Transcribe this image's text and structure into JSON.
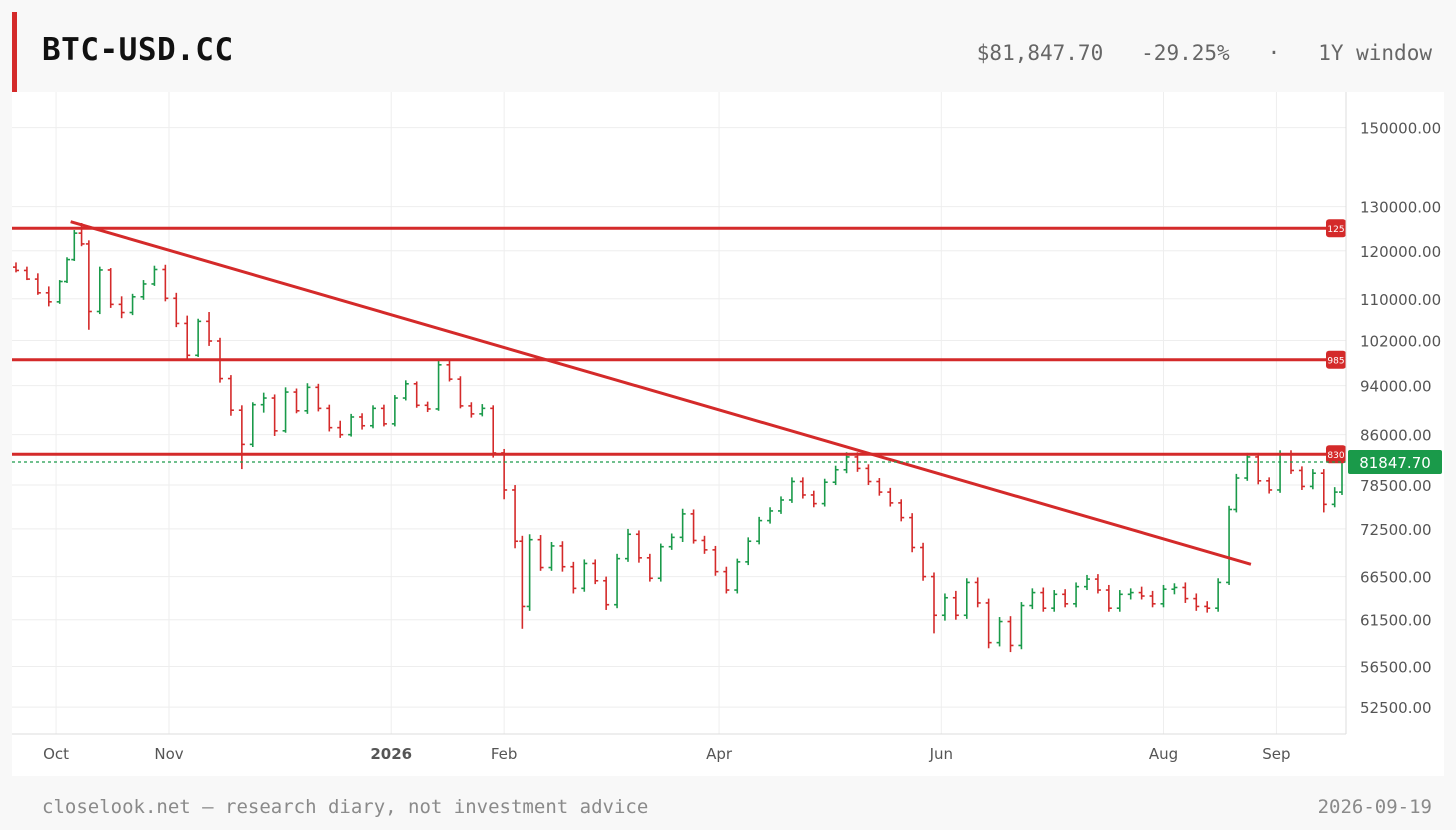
{
  "header": {
    "symbol": "BTC-USD.CC",
    "price": "$81,847.70",
    "change": "-29.25%",
    "separator": "·",
    "window": "1Y window"
  },
  "footer": {
    "note": "closelook.net — research diary, not investment advice",
    "date": "2026-09-19"
  },
  "colors": {
    "up": "#1a9a4a",
    "down": "#d42a2a",
    "level": "#d42a2a",
    "price_tag": "#1a9a4a"
  },
  "chart_data": {
    "type": "ohlc",
    "y_scale": "log",
    "ylim": [
      50000,
      160000
    ],
    "y_ticks": [
      "150000.00",
      "130000.00",
      "120000.00",
      "110000.00",
      "102000.00",
      "94000.00",
      "86000.00",
      "78500.00",
      "72500.00",
      "66500.00",
      "61500.00",
      "56500.00",
      "52500.00"
    ],
    "x_ticks": [
      {
        "label": "Oct",
        "date": "2025-10-01",
        "bold": false
      },
      {
        "label": "Nov",
        "date": "2025-11-01",
        "bold": false
      },
      {
        "label": "2026",
        "date": "2026-01-01",
        "bold": true
      },
      {
        "label": "Feb",
        "date": "2026-02-01",
        "bold": false
      },
      {
        "label": "Apr",
        "date": "2026-04-01",
        "bold": false
      },
      {
        "label": "Jun",
        "date": "2026-06-01",
        "bold": false
      },
      {
        "label": "Aug",
        "date": "2026-08-01",
        "bold": false
      },
      {
        "label": "Sep",
        "date": "2026-09-01",
        "bold": false
      }
    ],
    "x_range": [
      "2025-09-20",
      "2026-09-19"
    ],
    "last_price": 81847.7,
    "last_price_label": "81847.70",
    "horizontal_levels": [
      {
        "value": 125000,
        "label": "125"
      },
      {
        "value": 98500,
        "label": "985"
      },
      {
        "value": 83000,
        "label": "830"
      }
    ],
    "trendline": {
      "start": [
        "2025-10-05",
        126500
      ],
      "end": [
        "2026-08-25",
        68000
      ]
    },
    "bars": [
      [
        "2025-09-20",
        116500,
        117500,
        115400,
        115800
      ],
      [
        "2025-09-23",
        115800,
        116600,
        113800,
        114000
      ],
      [
        "2025-09-26",
        114000,
        115200,
        110800,
        111200
      ],
      [
        "2025-09-29",
        111200,
        112500,
        108500,
        109400
      ],
      [
        "2025-10-02",
        109400,
        113800,
        109000,
        113500
      ],
      [
        "2025-10-04",
        113500,
        118600,
        113200,
        118100
      ],
      [
        "2025-10-06",
        118100,
        124600,
        117800,
        123900
      ],
      [
        "2025-10-08",
        123900,
        126200,
        121000,
        121500
      ],
      [
        "2025-10-10",
        121500,
        122300,
        104000,
        107500
      ],
      [
        "2025-10-13",
        107500,
        116600,
        107000,
        115900
      ],
      [
        "2025-10-16",
        115900,
        116300,
        108200,
        108900
      ],
      [
        "2025-10-19",
        108900,
        110500,
        106200,
        107300
      ],
      [
        "2025-10-22",
        107300,
        111000,
        106800,
        110400
      ],
      [
        "2025-10-25",
        110400,
        113800,
        109800,
        113000
      ],
      [
        "2025-10-28",
        113000,
        116800,
        112600,
        116000
      ],
      [
        "2025-10-31",
        116000,
        117000,
        109500,
        110100
      ],
      [
        "2025-11-03",
        110100,
        111200,
        104500,
        105200
      ],
      [
        "2025-11-06",
        105200,
        106700,
        98700,
        99300
      ],
      [
        "2025-11-09",
        99300,
        106100,
        99000,
        105600
      ],
      [
        "2025-11-12",
        105600,
        107400,
        101000,
        101900
      ],
      [
        "2025-11-15",
        101900,
        102500,
        94500,
        95200
      ],
      [
        "2025-11-18",
        95200,
        95800,
        89000,
        89900
      ],
      [
        "2025-11-21",
        89900,
        90700,
        80800,
        84500
      ],
      [
        "2025-11-24",
        84500,
        91200,
        84100,
        90800
      ],
      [
        "2025-11-27",
        90800,
        92800,
        89500,
        91900
      ],
      [
        "2025-11-30",
        91900,
        92500,
        85800,
        86600
      ],
      [
        "2025-12-03",
        86600,
        93700,
        86300,
        92900
      ],
      [
        "2025-12-06",
        92900,
        93500,
        89400,
        89800
      ],
      [
        "2025-12-09",
        89800,
        94400,
        89300,
        93700
      ],
      [
        "2025-12-12",
        93700,
        94300,
        89700,
        90200
      ],
      [
        "2025-12-15",
        90200,
        90800,
        86500,
        87100
      ],
      [
        "2025-12-18",
        87100,
        88200,
        85500,
        86000
      ],
      [
        "2025-12-21",
        86000,
        89300,
        85700,
        88800
      ],
      [
        "2025-12-24",
        88800,
        89400,
        86800,
        87400
      ],
      [
        "2025-12-27",
        87400,
        90700,
        87000,
        90200
      ],
      [
        "2025-12-30",
        90200,
        90800,
        87300,
        87700
      ],
      [
        "2026-01-02",
        87700,
        92400,
        87300,
        91900
      ],
      [
        "2026-01-05",
        91900,
        94900,
        91500,
        94300
      ],
      [
        "2026-01-08",
        94300,
        94700,
        90300,
        90700
      ],
      [
        "2026-01-11",
        90700,
        91300,
        89600,
        90100
      ],
      [
        "2026-01-14",
        90100,
        98300,
        89800,
        97600
      ],
      [
        "2026-01-17",
        97600,
        98300,
        94700,
        95100
      ],
      [
        "2026-01-20",
        95100,
        95600,
        90200,
        90600
      ],
      [
        "2026-01-23",
        90600,
        91200,
        88700,
        89300
      ],
      [
        "2026-01-26",
        89300,
        90900,
        88900,
        90200
      ],
      [
        "2026-01-29",
        90200,
        90700,
        82500,
        83200
      ],
      [
        "2026-02-01",
        83200,
        83800,
        76500,
        77800
      ],
      [
        "2026-02-04",
        77800,
        78500,
        70000,
        70900
      ],
      [
        "2026-02-06",
        70900,
        71600,
        60500,
        63000
      ],
      [
        "2026-02-08",
        63000,
        71800,
        62500,
        71100
      ],
      [
        "2026-02-11",
        71100,
        71700,
        67200,
        67600
      ],
      [
        "2026-02-14",
        67600,
        70800,
        67200,
        70300
      ],
      [
        "2026-02-17",
        70300,
        70900,
        67100,
        67700
      ],
      [
        "2026-02-20",
        67700,
        68300,
        64500,
        65100
      ],
      [
        "2026-02-23",
        65100,
        68600,
        64700,
        68100
      ],
      [
        "2026-02-26",
        68100,
        68600,
        65600,
        66000
      ],
      [
        "2026-03-01",
        66000,
        66500,
        62600,
        63200
      ],
      [
        "2026-03-04",
        63200,
        69300,
        62800,
        68700
      ],
      [
        "2026-03-07",
        68700,
        72500,
        68300,
        71800
      ],
      [
        "2026-03-10",
        71800,
        72300,
        68200,
        68800
      ],
      [
        "2026-03-13",
        68800,
        69300,
        65900,
        66300
      ],
      [
        "2026-03-16",
        66300,
        70600,
        65900,
        70200
      ],
      [
        "2026-03-19",
        70200,
        71900,
        69800,
        71400
      ],
      [
        "2026-03-22",
        71400,
        75200,
        70800,
        74500
      ],
      [
        "2026-03-25",
        74500,
        75100,
        70600,
        71000
      ],
      [
        "2026-03-28",
        71000,
        71600,
        69300,
        69800
      ],
      [
        "2026-03-31",
        69800,
        70300,
        66600,
        67100
      ],
      [
        "2026-04-03",
        67100,
        67700,
        64500,
        64900
      ],
      [
        "2026-04-06",
        64900,
        68700,
        64500,
        68300
      ],
      [
        "2026-04-09",
        68300,
        71400,
        67900,
        70900
      ],
      [
        "2026-04-12",
        70900,
        74100,
        70500,
        73600
      ],
      [
        "2026-04-15",
        73600,
        75400,
        73200,
        74900
      ],
      [
        "2026-04-18",
        74900,
        76900,
        74500,
        76400
      ],
      [
        "2026-04-21",
        76400,
        79600,
        76000,
        79000
      ],
      [
        "2026-04-24",
        79000,
        79600,
        76600,
        77100
      ],
      [
        "2026-04-27",
        77100,
        77700,
        75400,
        75900
      ],
      [
        "2026-04-30",
        75900,
        79400,
        75500,
        78900
      ],
      [
        "2026-05-03",
        78900,
        81300,
        78500,
        80700
      ],
      [
        "2026-05-06",
        80700,
        83300,
        80200,
        82600
      ],
      [
        "2026-05-09",
        82600,
        83300,
        80400,
        80900
      ],
      [
        "2026-05-12",
        80900,
        81500,
        78500,
        79000
      ],
      [
        "2026-05-15",
        79000,
        79500,
        77000,
        77500
      ],
      [
        "2026-05-18",
        77500,
        78100,
        75500,
        76000
      ],
      [
        "2026-05-21",
        76000,
        76500,
        73500,
        74000
      ],
      [
        "2026-05-24",
        74000,
        74600,
        69500,
        70100
      ],
      [
        "2026-05-27",
        70100,
        70700,
        66000,
        66500
      ],
      [
        "2026-05-30",
        66500,
        67000,
        60000,
        62000
      ],
      [
        "2026-06-02",
        62000,
        64500,
        61400,
        64000
      ],
      [
        "2026-06-05",
        64000,
        64800,
        61500,
        62000
      ],
      [
        "2026-06-08",
        62000,
        66300,
        61600,
        65800
      ],
      [
        "2026-06-11",
        65800,
        66400,
        62900,
        63400
      ],
      [
        "2026-06-14",
        63400,
        63900,
        58400,
        59000
      ],
      [
        "2026-06-17",
        59000,
        61800,
        58600,
        61300
      ],
      [
        "2026-06-20",
        61300,
        61900,
        58000,
        58700
      ],
      [
        "2026-06-23",
        58700,
        63500,
        58300,
        63100
      ],
      [
        "2026-06-26",
        63100,
        65100,
        62700,
        64600
      ],
      [
        "2026-06-29",
        64600,
        65200,
        62400,
        62800
      ],
      [
        "2026-07-02",
        62800,
        64900,
        62400,
        64400
      ],
      [
        "2026-07-05",
        64400,
        65000,
        62900,
        63300
      ],
      [
        "2026-07-08",
        63300,
        65800,
        62900,
        65300
      ],
      [
        "2026-07-11",
        65300,
        66700,
        64900,
        66200
      ],
      [
        "2026-07-14",
        66200,
        66800,
        64500,
        64900
      ],
      [
        "2026-07-17",
        64900,
        65500,
        62400,
        62800
      ],
      [
        "2026-07-20",
        62800,
        64900,
        62400,
        64400
      ],
      [
        "2026-07-23",
        64400,
        65100,
        63800,
        64600
      ],
      [
        "2026-07-26",
        64600,
        65300,
        63800,
        64200
      ],
      [
        "2026-07-29",
        64200,
        64800,
        62900,
        63300
      ],
      [
        "2026-08-01",
        63300,
        65500,
        62900,
        65000
      ],
      [
        "2026-08-04",
        65000,
        65700,
        64400,
        65200
      ],
      [
        "2026-08-07",
        65200,
        65800,
        63400,
        63900
      ],
      [
        "2026-08-10",
        63900,
        64500,
        62500,
        63000
      ],
      [
        "2026-08-13",
        63000,
        63600,
        62300,
        62800
      ],
      [
        "2026-08-16",
        62800,
        66300,
        62400,
        65800
      ],
      [
        "2026-08-19",
        65800,
        75600,
        65500,
        75100
      ],
      [
        "2026-08-21",
        75100,
        80100,
        74700,
        79500
      ],
      [
        "2026-08-24",
        79500,
        83200,
        79100,
        82600
      ],
      [
        "2026-08-27",
        82600,
        83200,
        78600,
        79100
      ],
      [
        "2026-08-30",
        79100,
        79600,
        77300,
        77800
      ],
      [
        "2026-09-02",
        77800,
        83600,
        77400,
        83000
      ],
      [
        "2026-09-05",
        83000,
        83600,
        80100,
        80600
      ],
      [
        "2026-09-08",
        80600,
        81200,
        77800,
        78300
      ],
      [
        "2026-09-11",
        78300,
        80800,
        77900,
        80200
      ],
      [
        "2026-09-14",
        80200,
        80800,
        74700,
        75800
      ],
      [
        "2026-09-17",
        75800,
        78200,
        75400,
        77500
      ],
      [
        "2026-09-19",
        77500,
        82300,
        77100,
        81847.7
      ]
    ]
  }
}
